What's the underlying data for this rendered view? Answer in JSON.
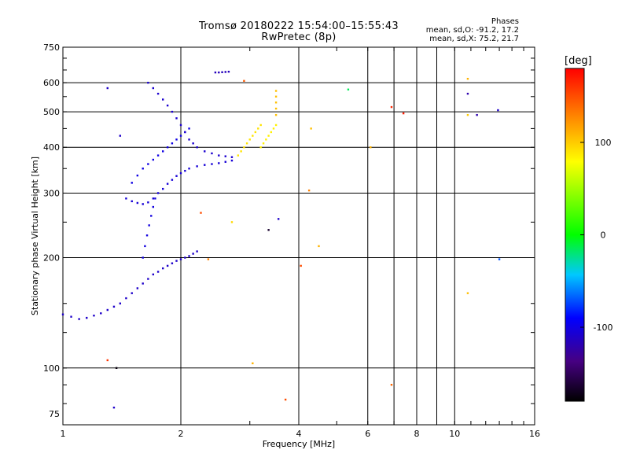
{
  "header": {
    "title_line1": "Tromsø 20180222 15:54:00–15:55:43",
    "title_line2": "RwPretec (8p)",
    "stats_title": "Phases",
    "stats_o": "mean, sd,O: -91.2, 17.2",
    "stats_x": "mean, sd,X: 75.2, 21.7"
  },
  "colorbar": {
    "title": "[deg]",
    "ticks": [
      "100",
      "0",
      "-100"
    ],
    "tick_values": [
      100,
      0,
      -100
    ],
    "range": [
      -180,
      180
    ]
  },
  "chart_data": {
    "type": "scatter",
    "title": "Tromsø 20180222 15:54:00–15:55:43",
    "subtitle": "RwPretec (8p)",
    "xlabel": "Frequency [MHz]",
    "ylabel": "Stationary phase Virtual Height [km]",
    "xscale": "log",
    "yscale": "log",
    "xlim": [
      1,
      16
    ],
    "ylim": [
      70,
      750
    ],
    "xticks": [
      1,
      2,
      4,
      6,
      8,
      10,
      16
    ],
    "xtick_labels": [
      "1",
      "2",
      "4",
      "6",
      "8",
      "10",
      "16"
    ],
    "yticks": [
      75,
      100,
      200,
      300,
      400,
      500,
      600,
      750
    ],
    "ytick_labels": [
      "75",
      "100",
      "200",
      "300",
      "400",
      "500",
      "600",
      "750"
    ],
    "grid": true,
    "x_gridlines": [
      2,
      4,
      6,
      7,
      8,
      9,
      10
    ],
    "y_gridlines": [
      100,
      200,
      300,
      400,
      500,
      600
    ],
    "color_encoding": "phase [deg], range -180 to 180",
    "traces": [
      {
        "x": [
          1.0,
          1.05,
          1.1,
          1.15,
          1.2,
          1.25,
          1.3,
          1.35,
          1.4,
          1.45,
          1.5,
          1.55,
          1.6,
          1.65,
          1.7,
          1.75,
          1.8,
          1.85,
          1.9,
          1.95,
          2.0,
          2.05,
          2.1,
          2.15,
          2.2
        ],
        "y": [
          140,
          138,
          136,
          137,
          139,
          141,
          144,
          147,
          150,
          155,
          160,
          165,
          170,
          175,
          180,
          183,
          187,
          190,
          193,
          196,
          198,
          200,
          202,
          205,
          208
        ],
        "phase": -110
      },
      {
        "x": [
          1.45,
          1.5,
          1.55,
          1.6,
          1.65,
          1.7,
          1.75,
          1.8,
          1.85,
          1.9,
          1.95,
          2.0,
          2.05,
          2.1,
          2.2,
          2.3,
          2.4,
          2.5,
          2.6,
          2.7
        ],
        "y": [
          290,
          285,
          282,
          280,
          283,
          290,
          300,
          308,
          318,
          326,
          334,
          340,
          345,
          350,
          355,
          358,
          360,
          362,
          365,
          368
        ],
        "phase": -105
      },
      {
        "x": [
          1.5,
          1.55,
          1.6,
          1.65,
          1.7,
          1.75,
          1.8,
          1.85,
          1.9,
          1.95,
          2.0,
          2.05,
          2.1
        ],
        "y": [
          320,
          335,
          350,
          360,
          370,
          380,
          390,
          400,
          410,
          420,
          430,
          440,
          450
        ],
        "phase": -100
      },
      {
        "x": [
          1.65,
          1.7,
          1.75,
          1.8,
          1.85,
          1.9,
          1.95,
          2.0,
          2.05,
          2.1,
          2.15,
          2.2,
          2.3,
          2.4,
          2.5,
          2.6,
          2.7
        ],
        "y": [
          600,
          580,
          560,
          540,
          520,
          500,
          480,
          460,
          440,
          420,
          410,
          400,
          390,
          385,
          380,
          378,
          376
        ],
        "phase": -108
      },
      {
        "x": [
          1.6,
          1.62,
          1.64,
          1.66,
          1.68,
          1.7,
          1.72
        ],
        "y": [
          200,
          215,
          230,
          245,
          260,
          275,
          290
        ],
        "phase": -102
      },
      {
        "x": [
          2.45,
          2.5,
          2.55,
          2.6,
          2.65
        ],
        "y": [
          640,
          640,
          641,
          642,
          643
        ],
        "phase": -115
      },
      {
        "x": [
          2.8,
          2.85,
          2.9,
          2.95,
          3.0,
          3.05,
          3.1,
          3.15,
          3.2
        ],
        "y": [
          380,
          390,
          400,
          410,
          420,
          430,
          440,
          450,
          460
        ],
        "phase": 90
      },
      {
        "x": [
          3.2,
          3.25,
          3.3,
          3.35,
          3.4,
          3.45,
          3.5
        ],
        "y": [
          400,
          410,
          420,
          430,
          440,
          450,
          460
        ],
        "phase": 85
      },
      {
        "x": [
          3.5,
          3.5,
          3.5,
          3.5,
          3.5
        ],
        "y": [
          490,
          510,
          530,
          550,
          570
        ],
        "phase": 105
      }
    ],
    "isolated_points": [
      {
        "x": 1.3,
        "y": 580,
        "phase": -110
      },
      {
        "x": 1.4,
        "y": 430,
        "phase": -110
      },
      {
        "x": 1.3,
        "y": 105,
        "phase": 160
      },
      {
        "x": 1.37,
        "y": 100,
        "phase": -175
      },
      {
        "x": 1.35,
        "y": 78,
        "phase": -110
      },
      {
        "x": 2.25,
        "y": 265,
        "phase": 150
      },
      {
        "x": 2.35,
        "y": 198,
        "phase": 130
      },
      {
        "x": 2.7,
        "y": 250,
        "phase": 95
      },
      {
        "x": 2.9,
        "y": 607,
        "phase": 145
      },
      {
        "x": 3.05,
        "y": 103,
        "phase": 110
      },
      {
        "x": 3.35,
        "y": 238,
        "phase": -165
      },
      {
        "x": 3.55,
        "y": 255,
        "phase": -110
      },
      {
        "x": 3.7,
        "y": 82,
        "phase": 150
      },
      {
        "x": 4.05,
        "y": 190,
        "phase": 150
      },
      {
        "x": 4.25,
        "y": 305,
        "phase": 130
      },
      {
        "x": 4.3,
        "y": 450,
        "phase": 105
      },
      {
        "x": 4.5,
        "y": 215,
        "phase": 110
      },
      {
        "x": 5.35,
        "y": 575,
        "phase": -15
      },
      {
        "x": 6.1,
        "y": 400,
        "phase": 110
      },
      {
        "x": 6.9,
        "y": 515,
        "phase": 165
      },
      {
        "x": 6.9,
        "y": 90,
        "phase": 140
      },
      {
        "x": 7.4,
        "y": 495,
        "phase": 170
      },
      {
        "x": 10.8,
        "y": 615,
        "phase": 110
      },
      {
        "x": 10.8,
        "y": 560,
        "phase": -120
      },
      {
        "x": 10.8,
        "y": 490,
        "phase": 100
      },
      {
        "x": 10.8,
        "y": 160,
        "phase": 105
      },
      {
        "x": 11.4,
        "y": 490,
        "phase": -120
      },
      {
        "x": 12.9,
        "y": 505,
        "phase": -110
      },
      {
        "x": 13.0,
        "y": 198,
        "phase": -70
      }
    ]
  }
}
